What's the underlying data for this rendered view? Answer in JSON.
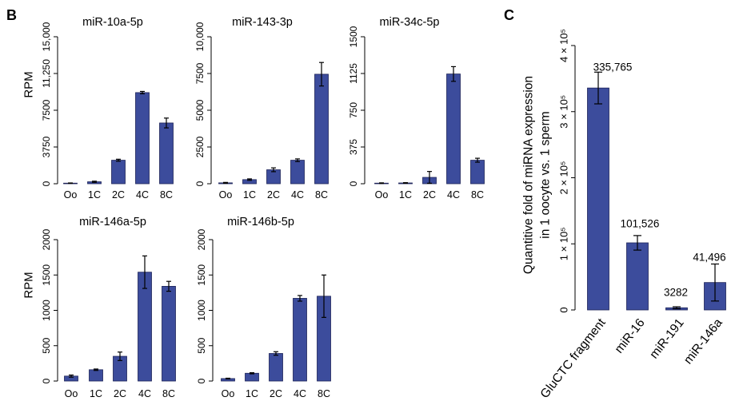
{
  "panel_labels": {
    "b": "B",
    "c": "C"
  },
  "colors": {
    "bar": "#3c4c9c",
    "bar_border": "#1d2358",
    "axis": "#000000",
    "error_bar": "#000000",
    "background": "#ffffff"
  },
  "chart_data": [
    {
      "type": "bar",
      "title": "miR-10a-5p",
      "ylabel": "RPM",
      "categories": [
        "Oo",
        "1C",
        "2C",
        "4C",
        "8C"
      ],
      "values": [
        60,
        200,
        2400,
        9300,
        6200
      ],
      "errors": [
        20,
        60,
        100,
        120,
        500
      ],
      "ylim": [
        0,
        15000
      ],
      "yticks": [
        0,
        3750,
        7500,
        11250,
        15000
      ],
      "ytick_labels": [
        "0",
        "3750",
        "7500",
        "11,250",
        "15,000"
      ],
      "grid": false
    },
    {
      "type": "bar",
      "title": "miR-143-3p",
      "categories": [
        "Oo",
        "1C",
        "2C",
        "4C",
        "8C"
      ],
      "values": [
        60,
        280,
        950,
        1600,
        7450
      ],
      "errors": [
        30,
        50,
        130,
        90,
        800
      ],
      "ylim": [
        0,
        10000
      ],
      "yticks": [
        0,
        2500,
        5000,
        7500,
        10000
      ],
      "ytick_labels": [
        "0",
        "2500",
        "5000",
        "7500",
        "10,000"
      ],
      "grid": false
    },
    {
      "type": "bar",
      "title": "miR-34c-5p",
      "categories": [
        "Oo",
        "1C",
        "2C",
        "4C",
        "8C"
      ],
      "values": [
        6,
        8,
        65,
        1120,
        240
      ],
      "errors": [
        3,
        3,
        60,
        75,
        20
      ],
      "ylim": [
        0,
        1500
      ],
      "yticks": [
        0,
        375,
        750,
        1125,
        1500
      ],
      "ytick_labels": [
        "0",
        "375",
        "750",
        "1125",
        "1500"
      ],
      "grid": false
    },
    {
      "type": "bar",
      "title": "miR-146a-5p",
      "ylabel": "RPM",
      "categories": [
        "Oo",
        "1C",
        "2C",
        "4C",
        "8C"
      ],
      "values": [
        70,
        160,
        350,
        1540,
        1340
      ],
      "errors": [
        15,
        10,
        60,
        230,
        70
      ],
      "ylim": [
        0,
        2000
      ],
      "yticks": [
        0,
        500,
        1000,
        1500,
        2000
      ],
      "ytick_labels": [
        "0",
        "500",
        "1000",
        "1500",
        "2000"
      ],
      "grid": false
    },
    {
      "type": "bar",
      "title": "miR-146b-5p",
      "categories": [
        "Oo",
        "1C",
        "2C",
        "4C",
        "8C"
      ],
      "values": [
        35,
        110,
        390,
        1170,
        1200
      ],
      "errors": [
        5,
        8,
        25,
        40,
        300
      ],
      "ylim": [
        0,
        2000
      ],
      "yticks": [
        0,
        500,
        1000,
        1500,
        2000
      ],
      "ytick_labels": [
        "0",
        "500",
        "1000",
        "1500",
        "2000"
      ],
      "grid": false
    },
    {
      "type": "bar",
      "ylabel": [
        "Quantitive fold of miRNA expression",
        "in 1 oocyte vs. 1 sperm"
      ],
      "categories": [
        "GluCTC fragment",
        "miR-16",
        "miR-191",
        "miR-146a"
      ],
      "values": [
        335765,
        101526,
        3282,
        41496
      ],
      "errors": [
        24000,
        11000,
        1500,
        28000
      ],
      "data_labels": [
        "335,765",
        "101,526",
        "3282",
        "41,496"
      ],
      "ylim": [
        0,
        400000
      ],
      "yticks": [
        0,
        100000,
        200000,
        300000,
        400000
      ],
      "ytick_labels": [
        "0",
        "1 × 10⁵",
        "2 × 10⁵",
        "3 × 10⁵",
        "4 × 10⁵"
      ],
      "grid": false
    }
  ]
}
